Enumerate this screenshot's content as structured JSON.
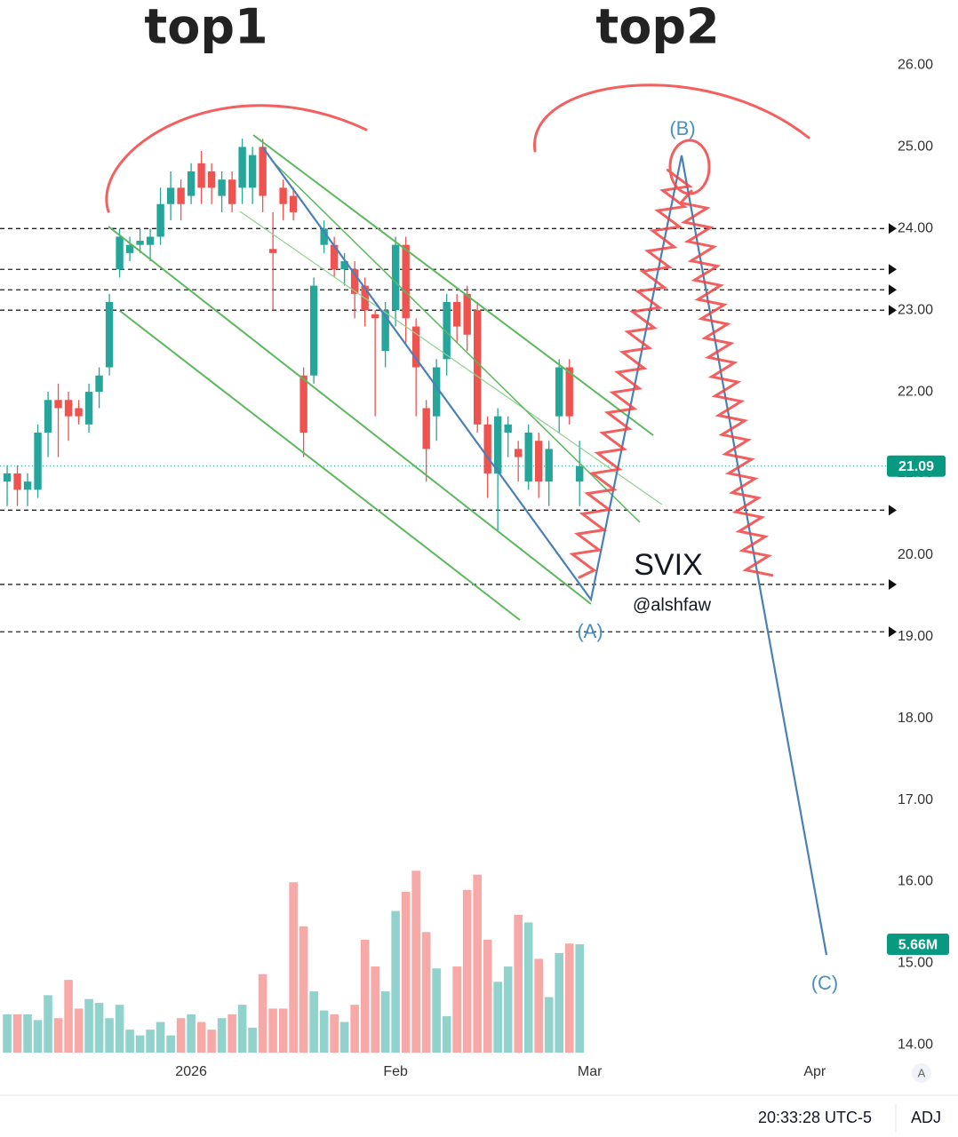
{
  "chart_data": {
    "type": "candlestick",
    "annotations": {
      "top1": "top1",
      "top2": "top2",
      "symbol": "SVIX",
      "author": "@alshfaw",
      "waves": [
        "(A)",
        "(B)",
        "(C)"
      ]
    },
    "xlim": [
      -0.7,
      85.8
    ],
    "xticks": [
      {
        "value": 18,
        "label": "2026"
      },
      {
        "value": 38,
        "label": "Feb"
      },
      {
        "value": 57,
        "label": "Mar"
      },
      {
        "value": 79,
        "label": "Apr"
      }
    ],
    "ylim": [
      13.85,
      26.8
    ],
    "yticks": [
      {
        "value": 14,
        "label": "14.00"
      },
      {
        "value": 15,
        "label": "15.00"
      },
      {
        "value": 16,
        "label": "16.00"
      },
      {
        "value": 17,
        "label": "17.00"
      },
      {
        "value": 18,
        "label": "18.00"
      },
      {
        "value": 19,
        "label": "19.00"
      },
      {
        "value": 20,
        "label": "20.00"
      },
      {
        "value": 21,
        "label": "21.00"
      },
      {
        "value": 22,
        "label": "22.00"
      },
      {
        "value": 23,
        "label": "23.00"
      },
      {
        "value": 24,
        "label": "24.00"
      },
      {
        "value": 25,
        "label": "25.00"
      },
      {
        "value": 26,
        "label": "26.00"
      }
    ],
    "open": [
      20.9,
      21.0,
      20.8,
      20.8,
      21.5,
      21.9,
      21.9,
      21.8,
      21.6,
      22.0,
      22.3,
      23.5,
      23.7,
      23.8,
      23.8,
      23.9,
      24.3,
      24.5,
      24.4,
      24.8,
      24.7,
      24.4,
      24.6,
      24.5,
      24.5,
      25.0,
      23.75,
      24.5,
      24.4,
      22.2,
      22.2,
      23.8,
      23.8,
      23.5,
      23.5,
      23.3,
      22.95,
      22.5,
      23.0,
      23.8,
      22.8,
      21.8,
      21.7,
      22.4,
      23.1,
      23.2,
      23.0,
      21.6,
      21.0,
      21.5,
      21.3,
      20.9,
      21.4,
      20.9,
      21.7,
      22.3,
      20.9
    ],
    "high": [
      21.1,
      21.1,
      21.0,
      21.6,
      22.0,
      22.1,
      22.0,
      21.9,
      22.1,
      22.3,
      23.2,
      24.0,
      23.9,
      24.0,
      24.0,
      24.5,
      24.7,
      24.6,
      24.8,
      24.95,
      24.8,
      24.7,
      24.7,
      25.1,
      25.0,
      25.1,
      24.2,
      24.6,
      24.5,
      22.3,
      23.4,
      24.1,
      23.9,
      23.7,
      23.6,
      23.4,
      23.0,
      23.1,
      23.9,
      23.9,
      22.9,
      21.9,
      22.4,
      23.2,
      23.2,
      23.3,
      23.1,
      21.7,
      21.8,
      21.7,
      21.4,
      21.6,
      21.5,
      21.4,
      22.4,
      22.4,
      21.4
    ],
    "low": [
      20.6,
      20.6,
      20.6,
      20.7,
      21.2,
      21.2,
      21.4,
      21.6,
      21.5,
      21.8,
      22.2,
      23.4,
      23.6,
      23.7,
      23.6,
      23.8,
      24.1,
      24.1,
      24.3,
      24.3,
      24.3,
      24.2,
      24.2,
      24.3,
      24.3,
      24.2,
      23.0,
      24.1,
      24.1,
      21.2,
      22.1,
      23.7,
      23.4,
      23.3,
      22.9,
      22.8,
      21.7,
      22.3,
      22.8,
      22.6,
      21.7,
      20.9,
      21.4,
      22.2,
      22.6,
      22.5,
      21.5,
      20.7,
      20.3,
      21.2,
      20.9,
      20.8,
      20.7,
      20.6,
      21.5,
      21.6,
      20.6
    ],
    "close": [
      21.0,
      20.8,
      20.9,
      21.5,
      21.9,
      21.8,
      21.7,
      21.7,
      22.0,
      22.2,
      23.1,
      23.9,
      23.8,
      23.85,
      23.9,
      24.3,
      24.5,
      24.3,
      24.7,
      24.5,
      24.5,
      24.6,
      24.3,
      25.0,
      24.9,
      24.4,
      23.7,
      24.3,
      24.2,
      21.5,
      23.3,
      24.0,
      23.5,
      23.6,
      23.2,
      23.0,
      22.9,
      23.0,
      23.8,
      22.9,
      22.3,
      21.3,
      22.3,
      23.1,
      22.8,
      22.7,
      21.6,
      21.0,
      21.7,
      21.6,
      21.2,
      21.5,
      20.9,
      21.3,
      22.3,
      21.7,
      21.09
    ],
    "y2lim": [
      0,
      55
    ],
    "volume": {
      "values": [
        2.0,
        2.0,
        2.0,
        1.7,
        3.0,
        1.8,
        3.8,
        2.3,
        2.8,
        2.6,
        1.8,
        2.5,
        1.2,
        0.9,
        1.2,
        1.6,
        0.9,
        1.8,
        2.0,
        1.6,
        1.2,
        1.8,
        2.0,
        2.5,
        1.3,
        4.1,
        2.3,
        2.3,
        8.9,
        6.6,
        3.2,
        2.2,
        2.0,
        1.6,
        2.5,
        5.9,
        4.5,
        3.2,
        7.4,
        8.4,
        9.5,
        6.3,
        4.4,
        1.9,
        4.5,
        8.5,
        9.3,
        5.9,
        3.7,
        4.5,
        7.2,
        6.8,
        4.9,
        2.9,
        5.2,
        5.7,
        5.66
      ],
      "value_labels": [
        null,
        null,
        null,
        null,
        null,
        null,
        null,
        null,
        null,
        null,
        null,
        null,
        null,
        null,
        null,
        null,
        null,
        null,
        null,
        null,
        null,
        null,
        null,
        null,
        null,
        null,
        null,
        null,
        null,
        null,
        null,
        null,
        null,
        null,
        null,
        null,
        null,
        null,
        null,
        null,
        null,
        null,
        null,
        null,
        null,
        null,
        null,
        null,
        null,
        null,
        null,
        null,
        null,
        null,
        null,
        null,
        "5.66M"
      ]
    },
    "levels": [
      24.0,
      23.5,
      23.25,
      23.0,
      20.55,
      19.64,
      19.06
    ],
    "up_color": "#26a69a",
    "down_color": "#ef5350",
    "footer": {
      "time": "20:33:28 UTC-5",
      "adj": "ADJ",
      "scale_button": "A"
    }
  }
}
